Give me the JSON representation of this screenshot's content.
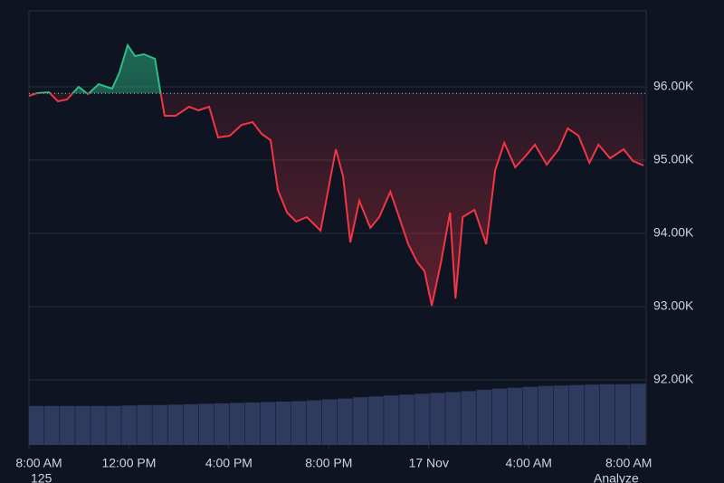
{
  "chart_data": {
    "type": "baseline",
    "x": [
      0,
      0.33,
      0.8,
      1.16,
      1.52,
      1.99,
      2.36,
      2.79,
      3.33,
      3.62,
      3.95,
      4.24,
      4.6,
      5.04,
      5.25,
      5.43,
      5.87,
      6.41,
      6.78,
      7.21,
      7.57,
      8.04,
      8.51,
      8.95,
      9.31,
      9.67,
      9.96,
      10.33,
      10.69,
      11.12,
      11.67,
      12.28,
      12.57,
      12.86,
      13.22,
      13.66,
      14.02,
      14.46,
      14.75,
      15.18,
      15.54,
      15.83,
      16.12,
      16.49,
      16.85,
      17.07,
      17.36,
      17.83,
      18.3,
      18.66,
      19.02,
      19.46,
      19.89,
      20.25,
      20.72,
      21.2,
      21.56,
      21.99,
      22.43,
      22.79,
      23.26,
      23.8,
      24.17,
      24.6
    ],
    "values": [
      95877,
      95914,
      95926,
      95802,
      95827,
      96000,
      95900,
      96037,
      95975,
      96198,
      96568,
      96420,
      96444,
      96383,
      95950,
      95605,
      95605,
      95728,
      95679,
      95728,
      95309,
      95333,
      95481,
      95519,
      95358,
      95272,
      94593,
      94284,
      94160,
      94222,
      94037,
      95148,
      94778,
      93877,
      94444,
      94074,
      94222,
      94568,
      94284,
      93852,
      93605,
      93481,
      93012,
      93605,
      94284,
      93111,
      94222,
      94321,
      93852,
      94864,
      95235,
      94901,
      95062,
      95210,
      94938,
      95148,
      95432,
      95333,
      94963,
      95210,
      95025,
      95148,
      94988,
      94926
    ],
    "baseline": 95910,
    "up_color": "#2ebd85",
    "down_color": "#f23645",
    "xlim": [
      0,
      24.7
    ],
    "xticks": [
      {
        "value": 0,
        "label": "8:00 AM"
      },
      {
        "value": 4,
        "label": "12:00 PM"
      },
      {
        "value": 8,
        "label": "4:00 PM"
      },
      {
        "value": 12,
        "label": "8:00 PM"
      },
      {
        "value": 16,
        "label": "17 Nov"
      },
      {
        "value": 20,
        "label": "4:00 AM"
      },
      {
        "value": 24,
        "label": "8:00 AM"
      }
    ],
    "ylim": [
      91111,
      97037
    ],
    "yticks": [
      {
        "value": 92000,
        "label": "92.00K"
      },
      {
        "value": 93000,
        "label": "93.00K"
      },
      {
        "value": 94000,
        "label": "94.00K"
      },
      {
        "value": 95000,
        "label": "95.00K"
      },
      {
        "value": 96000,
        "label": "96.00K"
      }
    ],
    "grid": true,
    "volume": {
      "color": "#2e3a5e",
      "ylim": [
        0,
        100
      ],
      "values": [
        9,
        9,
        9,
        9,
        9,
        9,
        9.1,
        9.2,
        9.2,
        9.3,
        9.4,
        9.5,
        9.6,
        9.7,
        9.8,
        9.9,
        10,
        10.1,
        10.3,
        10.5,
        10.7,
        11,
        11.2,
        11.4,
        11.6,
        11.8,
        12,
        12.2,
        12.4,
        12.7,
        13,
        13.2,
        13.4,
        13.6,
        13.7,
        13.8,
        13.9,
        14,
        14,
        14.1
      ]
    },
    "footer_left": "125",
    "footer_right": "Analyze"
  }
}
